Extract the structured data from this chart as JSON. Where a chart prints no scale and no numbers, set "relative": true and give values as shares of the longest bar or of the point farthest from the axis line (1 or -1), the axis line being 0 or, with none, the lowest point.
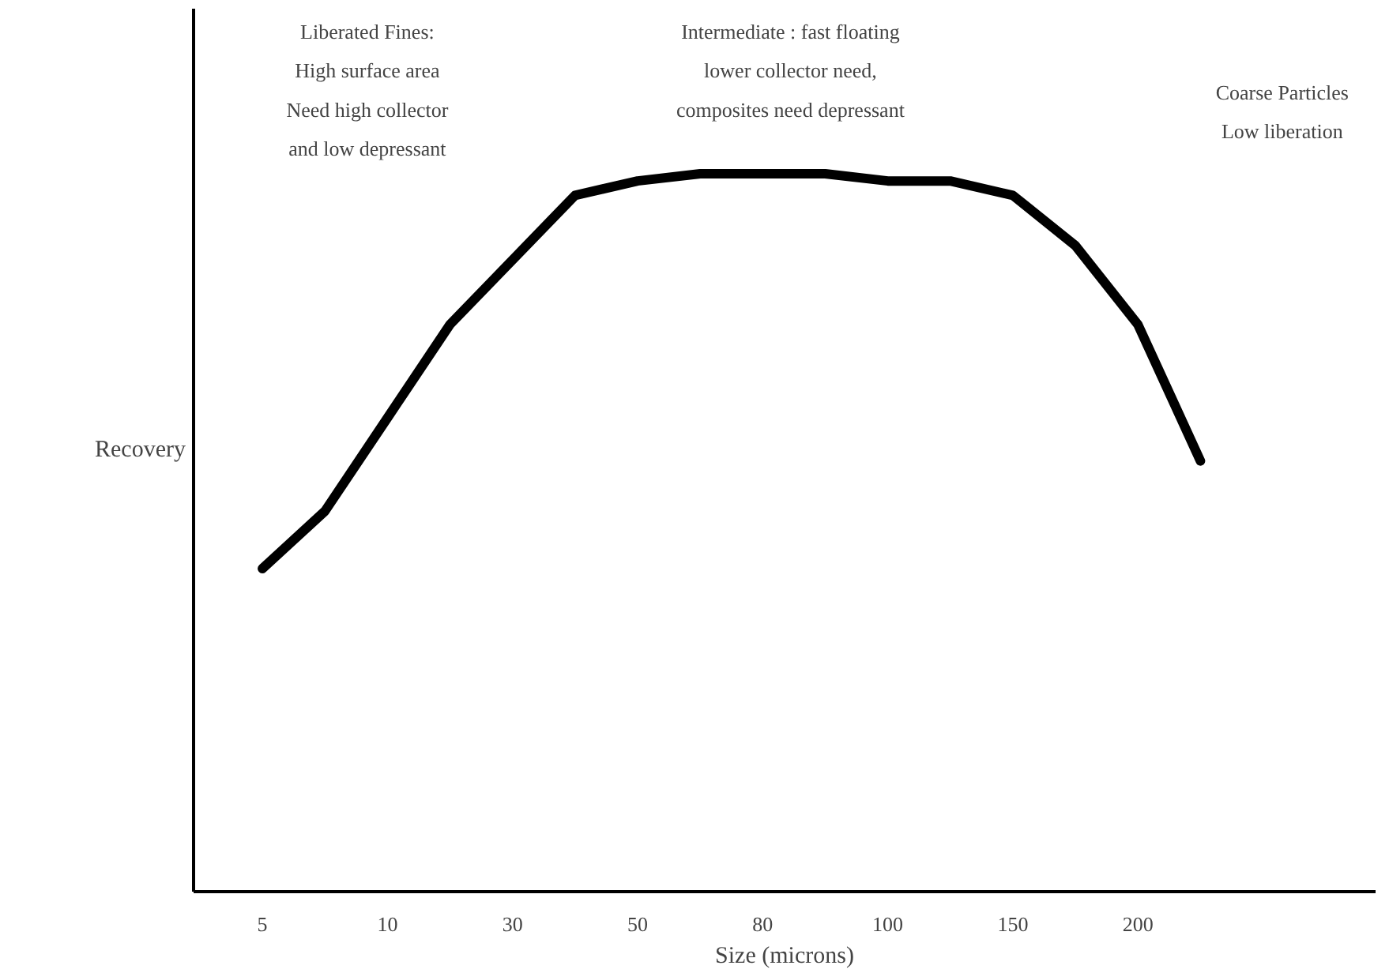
{
  "chart_data": {
    "type": "line",
    "relative": true,
    "xlabel": "Size (microns)",
    "ylabel": "Recovery",
    "annotations": [
      "Liberated Fines:\nHigh surface area\nNeed high collector\nand low depressant",
      "Intermediate : fast floating\nlower collector need,\ncomposites need depressant",
      "Coarse Particles\nLow liberation"
    ],
    "categories": [
      "5",
      null,
      "10",
      null,
      "30",
      null,
      "50",
      null,
      "80",
      null,
      "100",
      null,
      "150",
      null,
      "200",
      null
    ],
    "grid": false,
    "line_style": "solid",
    "series": [
      {
        "color": "#000000",
        "values": [
          0.45,
          0.53,
          0.66,
          0.79,
          0.88,
          0.97,
          0.99,
          1,
          1,
          1,
          0.99,
          0.99,
          0.97,
          0.9,
          0.79,
          0.6
        ]
      }
    ]
  }
}
